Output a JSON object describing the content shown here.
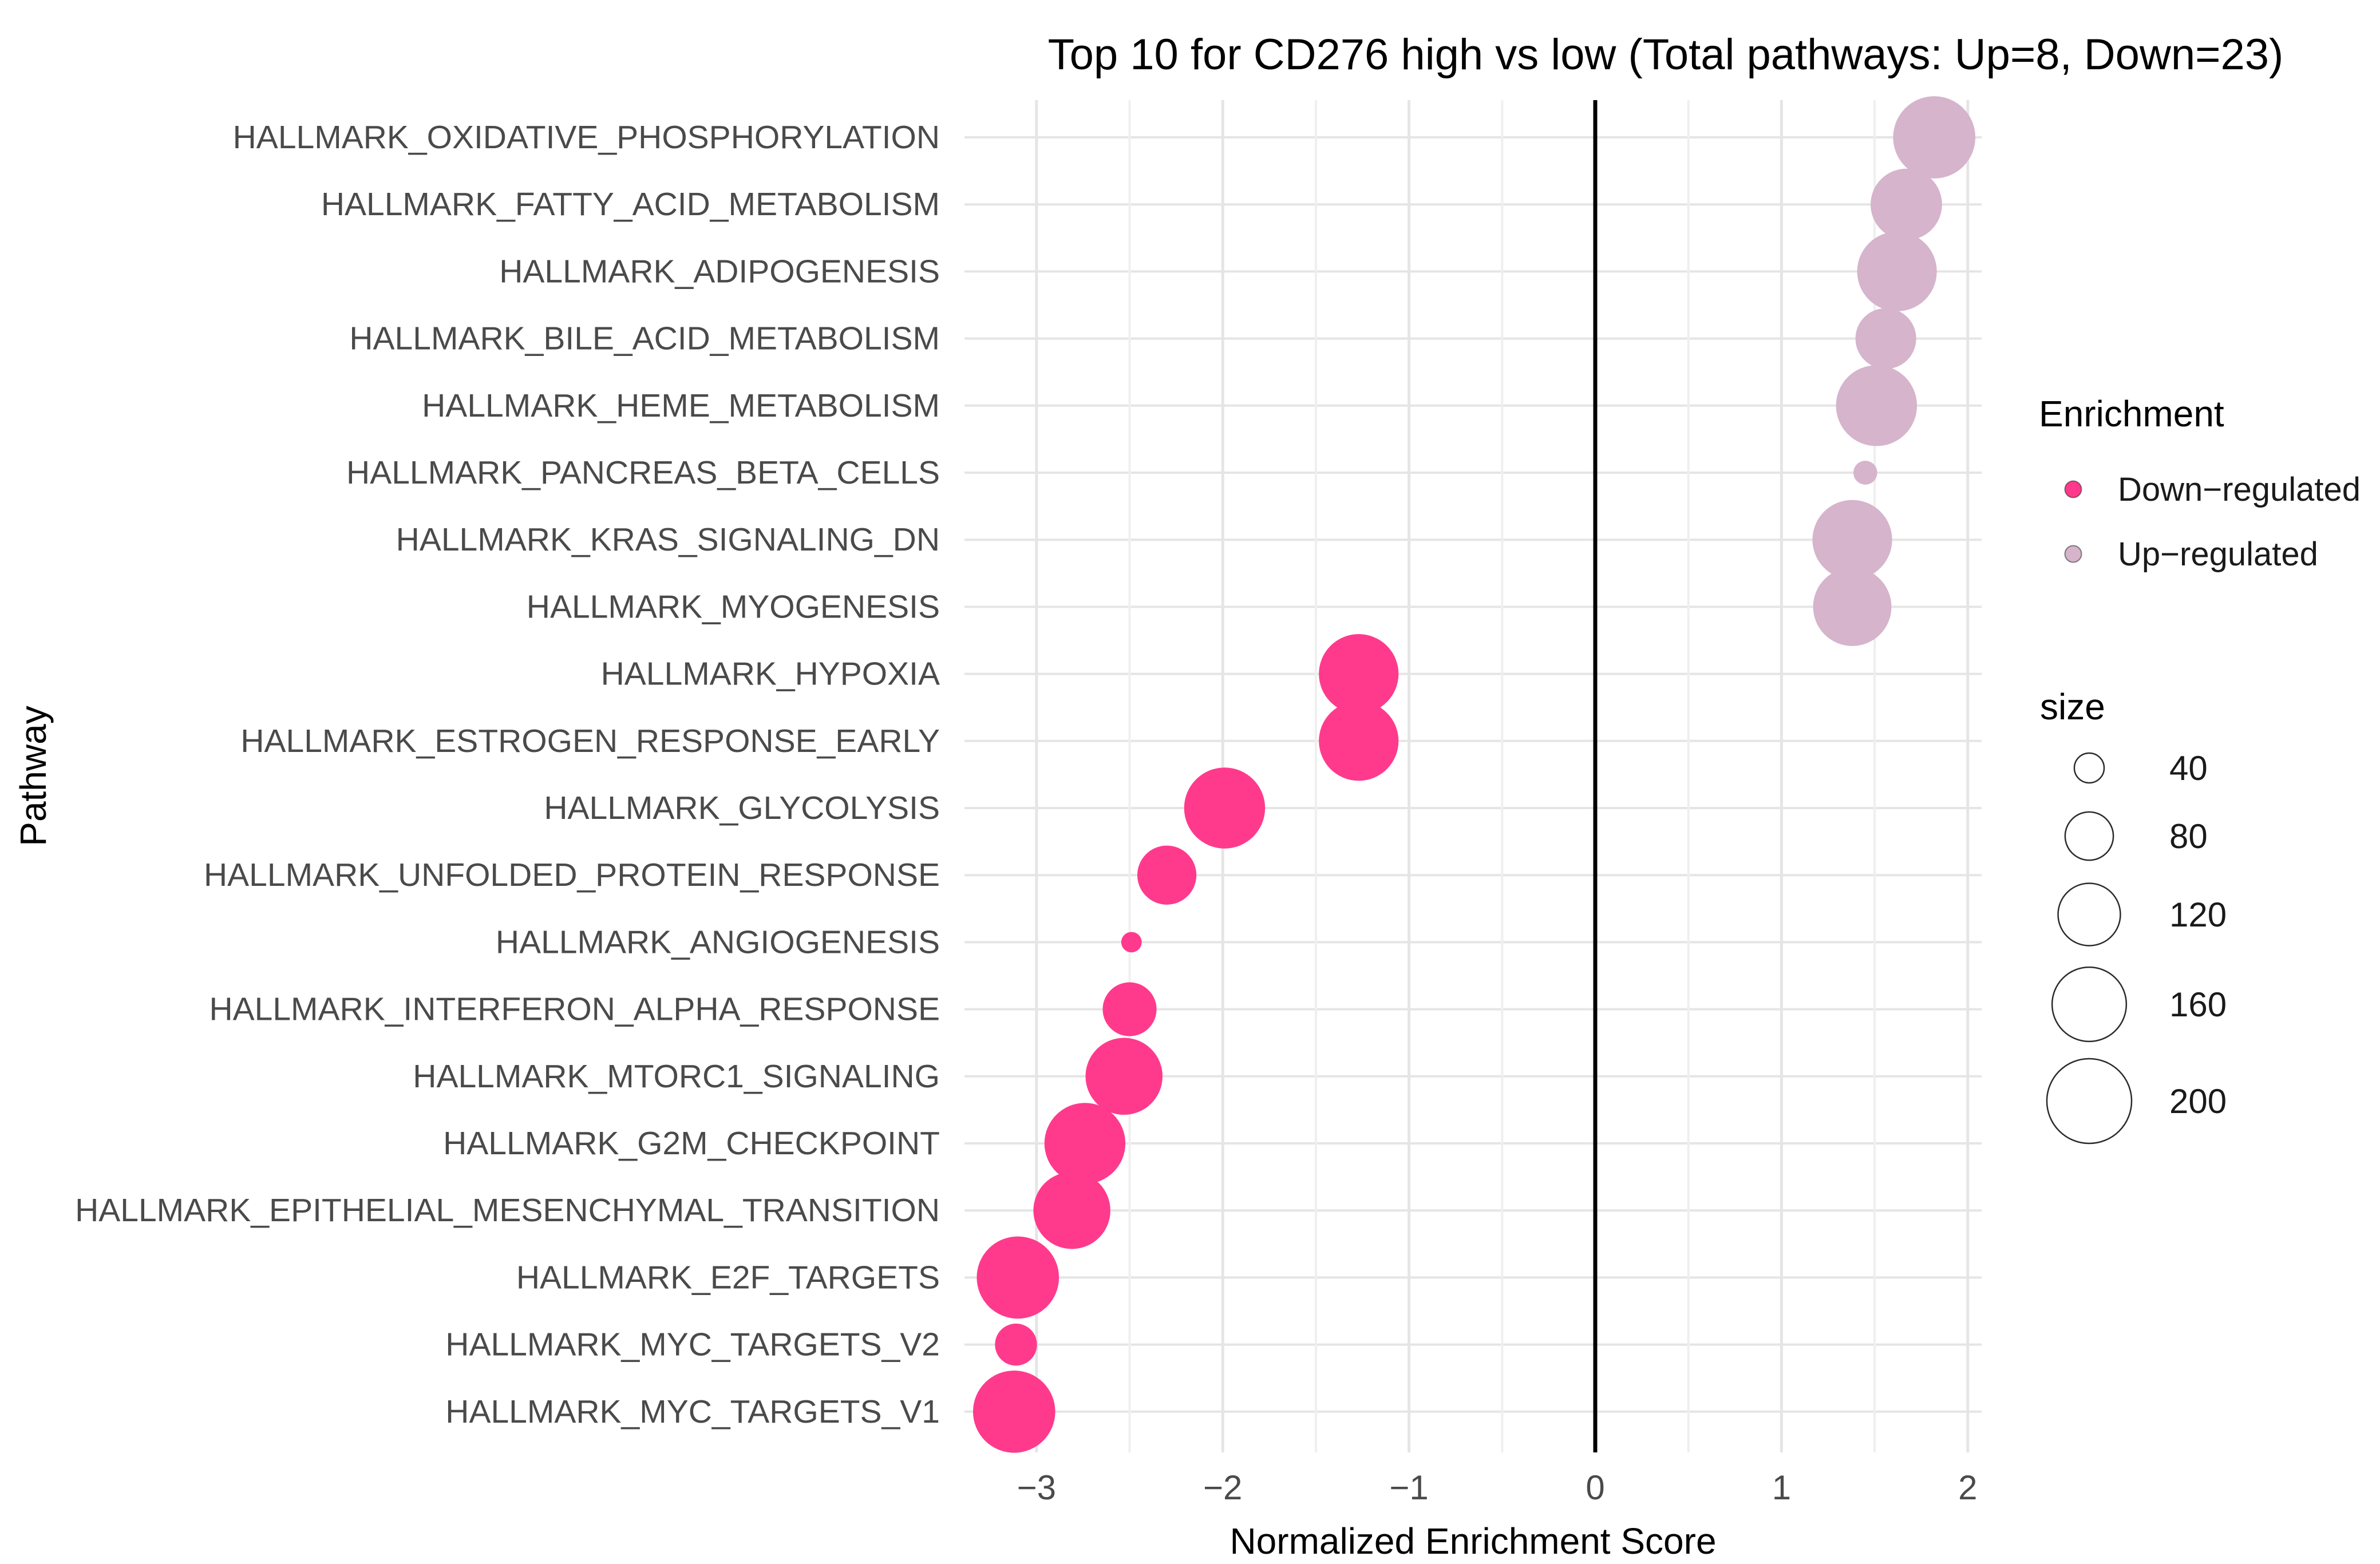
{
  "chart_data": {
    "type": "scatter",
    "title": "Top 10 for CD276 high vs low (Total pathways: Up=8, Down=23)",
    "xlabel": "Normalized Enrichment Score",
    "ylabel": "Pathway",
    "x_axis": {
      "ticks": [
        "−3",
        "−2",
        "−1",
        "0",
        "1",
        "2"
      ],
      "tick_values": [
        -3,
        -2,
        -1,
        0,
        1,
        2
      ],
      "range": [
        -3.39,
        2.07
      ],
      "minor_step": 0.5
    },
    "grid": true,
    "zero_line_at": 0,
    "legend": {
      "title": "Enrichment",
      "position": "right",
      "items": [
        {
          "label": "Down−regulated",
          "direction": "down",
          "color": "#FF3A8C"
        },
        {
          "label": "Up−regulated",
          "direction": "up",
          "color": "#D5B4CC"
        }
      ]
    },
    "size_legend": {
      "title": "size",
      "values": [
        40,
        80,
        120,
        160,
        200
      ]
    },
    "pathways": [
      {
        "label": "HALLMARK_OXIDATIVE_PHOSPHORYLATION",
        "nes": 1.82,
        "size": 190,
        "direction": "up"
      },
      {
        "label": "HALLMARK_FATTY_ACID_METABOLISM",
        "nes": 1.67,
        "size": 150,
        "direction": "up"
      },
      {
        "label": "HALLMARK_ADIPOGENESIS",
        "nes": 1.62,
        "size": 180,
        "direction": "up"
      },
      {
        "label": "HALLMARK_BILE_ACID_METABOLISM",
        "nes": 1.56,
        "size": 115,
        "direction": "up"
      },
      {
        "label": "HALLMARK_HEME_METABOLISM",
        "nes": 1.51,
        "size": 185,
        "direction": "up"
      },
      {
        "label": "HALLMARK_PANCREAS_BETA_CELLS",
        "nes": 1.45,
        "size": 30,
        "direction": "up"
      },
      {
        "label": "HALLMARK_KRAS_SIGNALING_DN",
        "nes": 1.38,
        "size": 180,
        "direction": "up"
      },
      {
        "label": "HALLMARK_MYOGENESIS",
        "nes": 1.38,
        "size": 175,
        "direction": "up"
      },
      {
        "label": "HALLMARK_HYPOXIA",
        "nes": -1.27,
        "size": 180,
        "direction": "down"
      },
      {
        "label": "HALLMARK_ESTROGEN_RESPONSE_EARLY",
        "nes": -1.27,
        "size": 180,
        "direction": "down"
      },
      {
        "label": "HALLMARK_GLYCOLYSIS",
        "nes": -1.99,
        "size": 185,
        "direction": "down"
      },
      {
        "label": "HALLMARK_UNFOLDED_PROTEIN_RESPONSE",
        "nes": -2.3,
        "size": 110,
        "direction": "down"
      },
      {
        "label": "HALLMARK_ANGIOGENESIS",
        "nes": -2.49,
        "size": 25,
        "direction": "down"
      },
      {
        "label": "HALLMARK_INTERFERON_ALPHA_RESPONSE",
        "nes": -2.5,
        "size": 95,
        "direction": "down"
      },
      {
        "label": "HALLMARK_MTORC1_SIGNALING",
        "nes": -2.53,
        "size": 170,
        "direction": "down"
      },
      {
        "label": "HALLMARK_G2M_CHECKPOINT",
        "nes": -2.74,
        "size": 185,
        "direction": "down"
      },
      {
        "label": "HALLMARK_EPITHELIAL_MESENCHYMAL_TRANSITION",
        "nes": -2.81,
        "size": 170,
        "direction": "down"
      },
      {
        "label": "HALLMARK_E2F_TARGETS",
        "nes": -3.1,
        "size": 190,
        "direction": "down"
      },
      {
        "label": "HALLMARK_MYC_TARGETS_V2",
        "nes": -3.11,
        "size": 65,
        "direction": "down"
      },
      {
        "label": "HALLMARK_MYC_TARGETS_V1",
        "nes": -3.12,
        "size": 190,
        "direction": "down"
      }
    ]
  },
  "colors": {
    "down": "#FF3A8C",
    "up": "#D5B4CC",
    "grid_major": "#E5E5E5",
    "grid_minor": "#EFEFEF",
    "axis_text": "#4A4A4A",
    "text": "#1A1A1A",
    "zero_line": "#000000",
    "background": "#FFFFFF"
  }
}
